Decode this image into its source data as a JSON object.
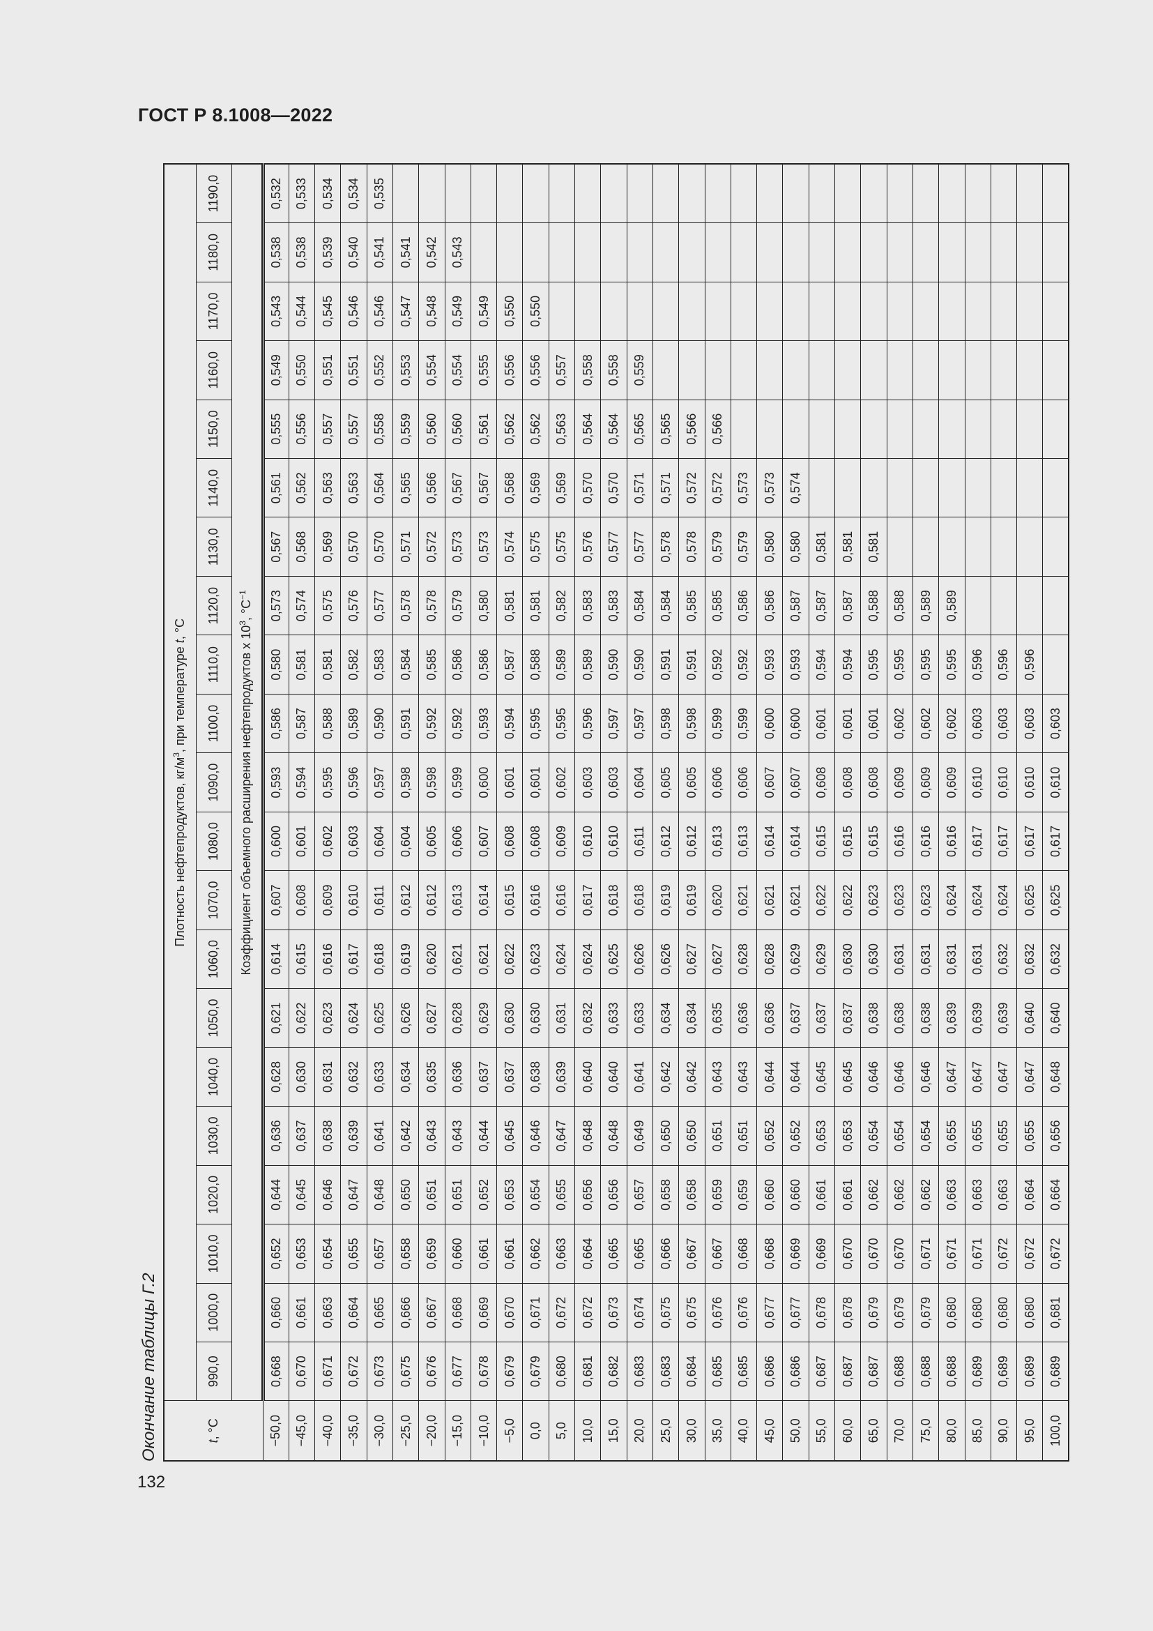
{
  "header": {
    "title": "ГОСТ Р 8.1008—2022"
  },
  "caption": "Окончание таблицы Г.2",
  "page_number": "132",
  "table": {
    "corner_label": [
      "t",
      ", °C"
    ],
    "density_header": [
      "Плотность нефтепродуктов, кг/м",
      "3",
      ", при температуре ",
      "t",
      ", °C"
    ],
    "coefficient_header": [
      "Коэффициент объемного расширения нефтепродуктов x 10",
      "3",
      ", °C",
      "−1"
    ],
    "columns": [
      "990,0",
      "1000,0",
      "1010,0",
      "1020,0",
      "1030,0",
      "1040,0",
      "1050,0",
      "1060,0",
      "1070,0",
      "1080,0",
      "1090,0",
      "1100,0",
      "1110,0",
      "1120,0",
      "1130,0",
      "1140,0",
      "1150,0",
      "1160,0",
      "1170,0",
      "1180,0",
      "1190,0"
    ],
    "rows": [
      {
        "t": "−50,0",
        "values": [
          "0,668",
          "0,660",
          "0,652",
          "0,644",
          "0,636",
          "0,628",
          "0,621",
          "0,614",
          "0,607",
          "0,600",
          "0,593",
          "0,586",
          "0,580",
          "0,573",
          "0,567",
          "0,561",
          "0,555",
          "0,549",
          "0,543",
          "0,538",
          "0,532"
        ]
      },
      {
        "t": "−45,0",
        "values": [
          "0,670",
          "0,661",
          "0,653",
          "0,645",
          "0,637",
          "0,630",
          "0,622",
          "0,615",
          "0,608",
          "0,601",
          "0,594",
          "0,587",
          "0,581",
          "0,574",
          "0,568",
          "0,562",
          "0,556",
          "0,550",
          "0,544",
          "0,538",
          "0,533"
        ]
      },
      {
        "t": "−40,0",
        "values": [
          "0,671",
          "0,663",
          "0,654",
          "0,646",
          "0,638",
          "0,631",
          "0,623",
          "0,616",
          "0,609",
          "0,602",
          "0,595",
          "0,588",
          "0,581",
          "0,575",
          "0,569",
          "0,563",
          "0,557",
          "0,551",
          "0,545",
          "0,539",
          "0,534"
        ]
      },
      {
        "t": "−35,0",
        "values": [
          "0,672",
          "0,664",
          "0,655",
          "0,647",
          "0,639",
          "0,632",
          "0,624",
          "0,617",
          "0,610",
          "0,603",
          "0,596",
          "0,589",
          "0,582",
          "0,576",
          "0,570",
          "0,563",
          "0,557",
          "0,551",
          "0,546",
          "0,540",
          "0,534"
        ]
      },
      {
        "t": "−30,0",
        "values": [
          "0,673",
          "0,665",
          "0,657",
          "0,648",
          "0,641",
          "0,633",
          "0,625",
          "0,618",
          "0,611",
          "0,604",
          "0,597",
          "0,590",
          "0,583",
          "0,577",
          "0,570",
          "0,564",
          "0,558",
          "0,552",
          "0,546",
          "0,541",
          "0,535"
        ]
      },
      {
        "t": "−25,0",
        "values": [
          "0,675",
          "0,666",
          "0,658",
          "0,650",
          "0,642",
          "0,634",
          "0,626",
          "0,619",
          "0,612",
          "0,604",
          "0,598",
          "0,591",
          "0,584",
          "0,578",
          "0,571",
          "0,565",
          "0,559",
          "0,553",
          "0,547",
          "0,541"
        ]
      },
      {
        "t": "−20,0",
        "values": [
          "0,676",
          "0,667",
          "0,659",
          "0,651",
          "0,643",
          "0,635",
          "0,627",
          "0,620",
          "0,612",
          "0,605",
          "0,598",
          "0,592",
          "0,585",
          "0,578",
          "0,572",
          "0,566",
          "0,560",
          "0,554",
          "0,548",
          "0,542"
        ]
      },
      {
        "t": "−15,0",
        "values": [
          "0,677",
          "0,668",
          "0,660",
          "0,651",
          "0,643",
          "0,636",
          "0,628",
          "0,621",
          "0,613",
          "0,606",
          "0,599",
          "0,592",
          "0,586",
          "0,579",
          "0,573",
          "0,567",
          "0,560",
          "0,554",
          "0,549",
          "0,543"
        ]
      },
      {
        "t": "−10,0",
        "values": [
          "0,678",
          "0,669",
          "0,661",
          "0,652",
          "0,644",
          "0,637",
          "0,629",
          "0,621",
          "0,614",
          "0,607",
          "0,600",
          "0,593",
          "0,586",
          "0,580",
          "0,573",
          "0,567",
          "0,561",
          "0,555",
          "0,549"
        ]
      },
      {
        "t": "−5,0",
        "values": [
          "0,679",
          "0,670",
          "0,661",
          "0,653",
          "0,645",
          "0,637",
          "0,630",
          "0,622",
          "0,615",
          "0,608",
          "0,601",
          "0,594",
          "0,587",
          "0,581",
          "0,574",
          "0,568",
          "0,562",
          "0,556",
          "0,550"
        ]
      },
      {
        "t": "0,0",
        "values": [
          "0,679",
          "0,671",
          "0,662",
          "0,654",
          "0,646",
          "0,638",
          "0,630",
          "0,623",
          "0,616",
          "0,608",
          "0,601",
          "0,595",
          "0,588",
          "0,581",
          "0,575",
          "0,569",
          "0,562",
          "0,556",
          "0,550"
        ]
      },
      {
        "t": "5,0",
        "values": [
          "0,680",
          "0,672",
          "0,663",
          "0,655",
          "0,647",
          "0,639",
          "0,631",
          "0,624",
          "0,616",
          "0,609",
          "0,602",
          "0,595",
          "0,589",
          "0,582",
          "0,575",
          "0,569",
          "0,563",
          "0,557"
        ]
      },
      {
        "t": "10,0",
        "values": [
          "0,681",
          "0,672",
          "0,664",
          "0,656",
          "0,648",
          "0,640",
          "0,632",
          "0,624",
          "0,617",
          "0,610",
          "0,603",
          "0,596",
          "0,589",
          "0,583",
          "0,576",
          "0,570",
          "0,564",
          "0,558"
        ]
      },
      {
        "t": "15,0",
        "values": [
          "0,682",
          "0,673",
          "0,665",
          "0,656",
          "0,648",
          "0,640",
          "0,633",
          "0,625",
          "0,618",
          "0,610",
          "0,603",
          "0,597",
          "0,590",
          "0,583",
          "0,577",
          "0,570",
          "0,564",
          "0,558"
        ]
      },
      {
        "t": "20,0",
        "values": [
          "0,683",
          "0,674",
          "0,665",
          "0,657",
          "0,649",
          "0,641",
          "0,633",
          "0,626",
          "0,618",
          "0,611",
          "0,604",
          "0,597",
          "0,590",
          "0,584",
          "0,577",
          "0,571",
          "0,565",
          "0,559"
        ]
      },
      {
        "t": "25,0",
        "values": [
          "0,683",
          "0,675",
          "0,666",
          "0,658",
          "0,650",
          "0,642",
          "0,634",
          "0,626",
          "0,619",
          "0,612",
          "0,605",
          "0,598",
          "0,591",
          "0,584",
          "0,578",
          "0,571",
          "0,565"
        ]
      },
      {
        "t": "30,0",
        "values": [
          "0,684",
          "0,675",
          "0,667",
          "0,658",
          "0,650",
          "0,642",
          "0,634",
          "0,627",
          "0,619",
          "0,612",
          "0,605",
          "0,598",
          "0,591",
          "0,585",
          "0,578",
          "0,572",
          "0,566"
        ]
      },
      {
        "t": "35,0",
        "values": [
          "0,685",
          "0,676",
          "0,667",
          "0,659",
          "0,651",
          "0,643",
          "0,635",
          "0,627",
          "0,620",
          "0,613",
          "0,606",
          "0,599",
          "0,592",
          "0,585",
          "0,579",
          "0,572",
          "0,566"
        ]
      },
      {
        "t": "40,0",
        "values": [
          "0,685",
          "0,676",
          "0,668",
          "0,659",
          "0,651",
          "0,643",
          "0,636",
          "0,628",
          "0,621",
          "0,613",
          "0,606",
          "0,599",
          "0,592",
          "0,586",
          "0,579",
          "0,573"
        ]
      },
      {
        "t": "45,0",
        "values": [
          "0,686",
          "0,677",
          "0,668",
          "0,660",
          "0,652",
          "0,644",
          "0,636",
          "0,628",
          "0,621",
          "0,614",
          "0,607",
          "0,600",
          "0,593",
          "0,586",
          "0,580",
          "0,573"
        ]
      },
      {
        "t": "50,0",
        "values": [
          "0,686",
          "0,677",
          "0,669",
          "0,660",
          "0,652",
          "0,644",
          "0,637",
          "0,629",
          "0,621",
          "0,614",
          "0,607",
          "0,600",
          "0,593",
          "0,587",
          "0,580",
          "0,574"
        ]
      },
      {
        "t": "55,0",
        "values": [
          "0,687",
          "0,678",
          "0,669",
          "0,661",
          "0,653",
          "0,645",
          "0,637",
          "0,629",
          "0,622",
          "0,615",
          "0,608",
          "0,601",
          "0,594",
          "0,587",
          "0,581"
        ]
      },
      {
        "t": "60,0",
        "values": [
          "0,687",
          "0,678",
          "0,670",
          "0,661",
          "0,653",
          "0,645",
          "0,637",
          "0,630",
          "0,622",
          "0,615",
          "0,608",
          "0,601",
          "0,594",
          "0,587",
          "0,581"
        ]
      },
      {
        "t": "65,0",
        "values": [
          "0,687",
          "0,679",
          "0,670",
          "0,662",
          "0,654",
          "0,646",
          "0,638",
          "0,630",
          "0,623",
          "0,615",
          "0,608",
          "0,601",
          "0,595",
          "0,588",
          "0,581"
        ]
      },
      {
        "t": "70,0",
        "values": [
          "0,688",
          "0,679",
          "0,670",
          "0,662",
          "0,654",
          "0,646",
          "0,638",
          "0,631",
          "0,623",
          "0,616",
          "0,609",
          "0,602",
          "0,595",
          "0,588"
        ]
      },
      {
        "t": "75,0",
        "values": [
          "0,688",
          "0,679",
          "0,671",
          "0,662",
          "0,654",
          "0,646",
          "0,638",
          "0,631",
          "0,623",
          "0,616",
          "0,609",
          "0,602",
          "0,595",
          "0,589"
        ]
      },
      {
        "t": "80,0",
        "values": [
          "0,688",
          "0,680",
          "0,671",
          "0,663",
          "0,655",
          "0,647",
          "0,639",
          "0,631",
          "0,624",
          "0,616",
          "0,609",
          "0,602",
          "0,595",
          "0,589"
        ]
      },
      {
        "t": "85,0",
        "values": [
          "0,689",
          "0,680",
          "0,671",
          "0,663",
          "0,655",
          "0,647",
          "0,639",
          "0,631",
          "0,624",
          "0,617",
          "0,610",
          "0,603",
          "0,596"
        ]
      },
      {
        "t": "90,0",
        "values": [
          "0,689",
          "0,680",
          "0,672",
          "0,663",
          "0,655",
          "0,647",
          "0,639",
          "0,632",
          "0,624",
          "0,617",
          "0,610",
          "0,603",
          "0,596"
        ]
      },
      {
        "t": "95,0",
        "values": [
          "0,689",
          "0,680",
          "0,672",
          "0,664",
          "0,655",
          "0,647",
          "0,640",
          "0,632",
          "0,625",
          "0,617",
          "0,610",
          "0,603",
          "0,596"
        ]
      },
      {
        "t": "100,0",
        "values": [
          "0,689",
          "0,681",
          "0,672",
          "0,664",
          "0,656",
          "0,648",
          "0,640",
          "0,632",
          "0,625",
          "0,617",
          "0,610",
          "0,603"
        ]
      }
    ]
  }
}
